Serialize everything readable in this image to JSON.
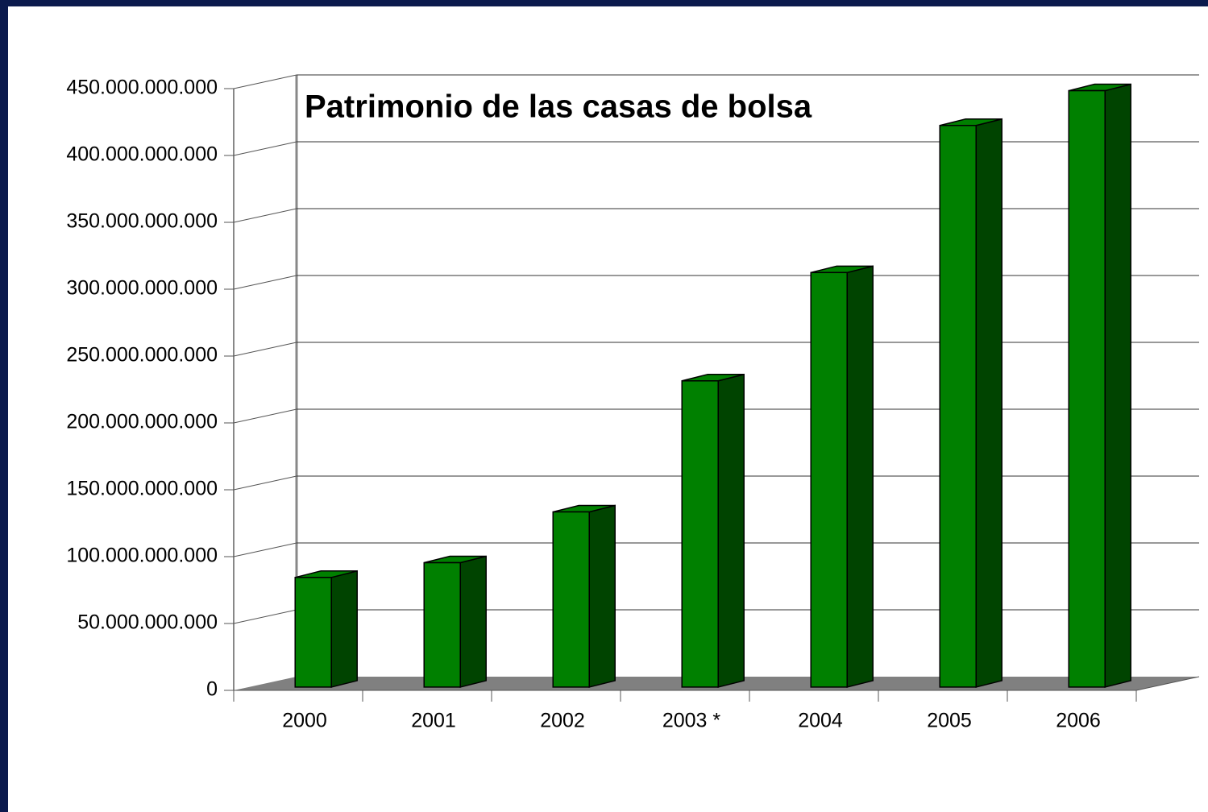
{
  "chart_data": {
    "type": "bar3d",
    "title": "Patrimonio de las casas de bolsa",
    "categories": [
      "2000",
      "2001",
      "2002",
      "2003 *",
      "2004",
      "2005",
      "2006"
    ],
    "values": [
      82000000000,
      93000000000,
      131000000000,
      229000000000,
      310000000000,
      420000000000,
      446000000000
    ],
    "color": "#008000",
    "side_color": "#004400",
    "ylim": [
      0,
      450000000000
    ],
    "yticks": [
      {
        "value": 0,
        "label": "0"
      },
      {
        "value": 50000000000,
        "label": "50.000.000.000"
      },
      {
        "value": 100000000000,
        "label": "100.000.000.000"
      },
      {
        "value": 150000000000,
        "label": "150.000.000.000"
      },
      {
        "value": 200000000000,
        "label": "200.000.000.000"
      },
      {
        "value": 250000000000,
        "label": "250.000.000.000"
      },
      {
        "value": 300000000000,
        "label": "300.000.000.000"
      },
      {
        "value": 350000000000,
        "label": "350.000.000.000"
      },
      {
        "value": 400000000000,
        "label": "400.000.000.000"
      },
      {
        "value": 450000000000,
        "label": "450.000.000.000"
      }
    ],
    "grid": true
  }
}
